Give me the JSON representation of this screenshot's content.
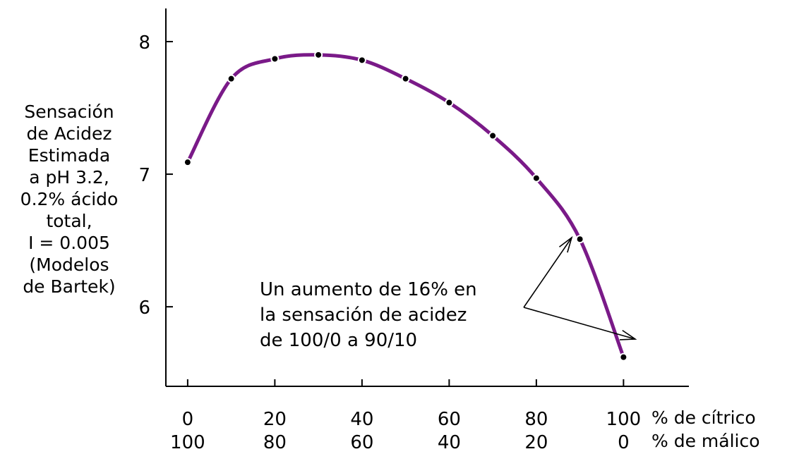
{
  "chart_data": {
    "type": "line",
    "x": [
      0,
      10,
      20,
      30,
      40,
      50,
      60,
      70,
      80,
      90,
      100
    ],
    "x2": [
      100,
      90,
      80,
      70,
      60,
      50,
      40,
      30,
      20,
      10,
      0
    ],
    "y": [
      7.09,
      7.72,
      7.87,
      7.9,
      7.86,
      7.72,
      7.54,
      7.29,
      6.97,
      6.51,
      5.62
    ],
    "xlim": [
      -5,
      115
    ],
    "ylim": [
      5.4,
      8.25
    ],
    "x_ticks": [
      0,
      20,
      40,
      60,
      80,
      100
    ],
    "x_tick_labels": [
      "0",
      "20",
      "40",
      "60",
      "80",
      "100"
    ],
    "x2_tick_labels": [
      "100",
      "80",
      "60",
      "40",
      "20",
      "0"
    ],
    "y_ticks": [
      6,
      7,
      8
    ],
    "y_tick_labels": [
      "6",
      "7",
      "8"
    ],
    "xlabel": "% de cítrico",
    "x2label": "% de málico",
    "ylabel_lines": [
      "Sensación",
      "de Acidez",
      "Estimada",
      "a pH 3.2,",
      "0.2% ácido",
      "total,",
      "I = 0.005",
      "(Modelos",
      "de Bartek)"
    ],
    "annotation_lines": [
      "Un aumento de 16% en",
      "la sensación de acidez",
      "de 100/0 a 90/10"
    ],
    "annotation_targets": [
      [
        90,
        6.51
      ],
      [
        100,
        5.62
      ]
    ],
    "grid": false,
    "line_color": "#7a1a88",
    "marker_color": "#000000"
  }
}
